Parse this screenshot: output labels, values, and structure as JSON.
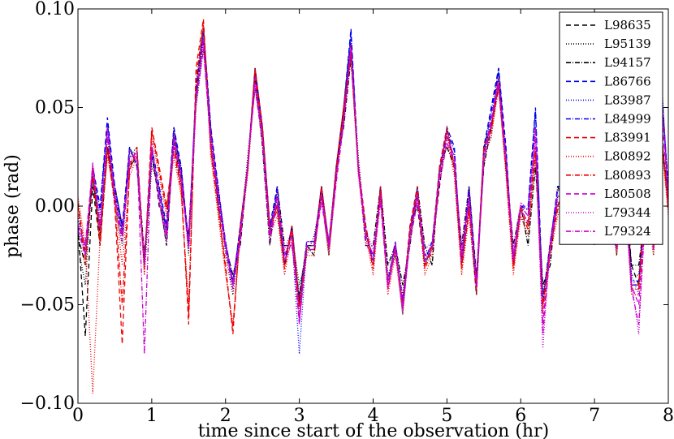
{
  "chart_data": {
    "type": "line",
    "title": "",
    "xlabel": "time since start of the observation (hr)",
    "ylabel": "phase (rad)",
    "xlim": [
      0,
      8
    ],
    "ylim": [
      -0.1,
      0.1
    ],
    "xticks": [
      0,
      1,
      2,
      3,
      4,
      5,
      6,
      7,
      8
    ],
    "yticks": [
      -0.1,
      -0.05,
      0.0,
      0.05,
      0.1
    ],
    "xtick_labels": [
      "0",
      "1",
      "2",
      "3",
      "4",
      "5",
      "6",
      "7",
      "8"
    ],
    "ytick_labels": [
      "−0.10",
      "−0.05",
      "0.00",
      "0.05",
      "0.10"
    ],
    "grid": false,
    "legend_position": "top-right",
    "x": [
      0.0,
      0.1,
      0.2,
      0.3,
      0.4,
      0.5,
      0.6,
      0.7,
      0.8,
      0.9,
      1.0,
      1.1,
      1.2,
      1.3,
      1.4,
      1.5,
      1.6,
      1.7,
      1.8,
      1.9,
      2.0,
      2.1,
      2.2,
      2.3,
      2.4,
      2.5,
      2.6,
      2.7,
      2.8,
      2.9,
      3.0,
      3.1,
      3.2,
      3.3,
      3.4,
      3.5,
      3.6,
      3.7,
      3.8,
      3.9,
      4.0,
      4.1,
      4.2,
      4.3,
      4.4,
      4.5,
      4.6,
      4.7,
      4.8,
      4.9,
      5.0,
      5.1,
      5.2,
      5.3,
      5.4,
      5.5,
      5.6,
      5.7,
      5.8,
      5.9,
      6.0,
      6.1,
      6.2,
      6.3,
      6.4,
      6.5,
      6.6,
      6.7,
      6.8,
      6.9,
      7.0,
      7.1,
      7.2,
      7.3,
      7.4,
      7.5,
      7.6,
      7.7,
      7.8,
      7.9,
      8.0
    ],
    "series": [
      {
        "name": "L98635",
        "color": "#000000",
        "dash": "6,4",
        "values": [
          -0.01,
          -0.066,
          0.01,
          -0.02,
          0.03,
          0.005,
          -0.015,
          0.03,
          0.02,
          -0.03,
          0.03,
          0.0,
          -0.01,
          0.04,
          0.015,
          -0.02,
          0.06,
          0.09,
          0.04,
          0.0,
          -0.02,
          -0.04,
          -0.01,
          0.02,
          0.07,
          0.04,
          -0.01,
          0.0,
          -0.03,
          -0.01,
          -0.05,
          -0.02,
          -0.02,
          0.01,
          -0.02,
          0.02,
          0.05,
          0.085,
          0.02,
          -0.01,
          -0.03,
          0.01,
          -0.04,
          -0.02,
          -0.05,
          -0.01,
          0.0,
          -0.03,
          -0.02,
          0.01,
          0.04,
          0.02,
          -0.03,
          0.0,
          -0.045,
          0.03,
          0.04,
          0.07,
          0.02,
          -0.03,
          0.0,
          -0.01,
          0.03,
          -0.05,
          -0.02,
          0.0,
          0.01,
          0.02,
          0.03,
          0.0,
          -0.01,
          0.02,
          0.01,
          -0.02,
          0.02,
          -0.03,
          -0.04,
          0.01,
          -0.02,
          0.04,
          0.0
        ]
      },
      {
        "name": "L95139",
        "color": "#000000",
        "dash": "1,2",
        "values": [
          -0.02,
          -0.04,
          0.02,
          -0.01,
          0.035,
          0.0,
          -0.02,
          0.025,
          0.03,
          -0.035,
          0.02,
          0.01,
          -0.015,
          0.03,
          0.02,
          -0.025,
          0.05,
          0.08,
          0.035,
          0.01,
          -0.025,
          -0.045,
          -0.015,
          0.025,
          0.06,
          0.035,
          -0.015,
          0.005,
          -0.025,
          -0.015,
          -0.04,
          -0.025,
          -0.015,
          0.005,
          -0.025,
          0.015,
          0.045,
          0.08,
          0.025,
          -0.015,
          -0.025,
          0.005,
          -0.035,
          -0.025,
          -0.045,
          -0.015,
          0.005,
          -0.025,
          -0.025,
          0.015,
          0.035,
          0.025,
          -0.025,
          0.005,
          -0.04,
          0.025,
          0.035,
          0.065,
          0.025,
          -0.025,
          -0.005,
          -0.015,
          0.025,
          -0.045,
          -0.025,
          0.005,
          0.005,
          0.025,
          0.025,
          0.005,
          -0.015,
          0.025,
          0.005,
          -0.025,
          0.015,
          -0.035,
          -0.035,
          0.005,
          -0.025,
          0.035,
          0.005
        ]
      },
      {
        "name": "L94157",
        "color": "#000000",
        "dash": "6,2,1,2",
        "values": [
          -0.015,
          -0.03,
          0.015,
          -0.015,
          0.03,
          0.01,
          -0.01,
          0.02,
          0.025,
          -0.025,
          0.025,
          0.005,
          -0.02,
          0.035,
          0.01,
          -0.015,
          0.055,
          0.085,
          0.03,
          0.005,
          -0.02,
          -0.035,
          -0.02,
          0.02,
          0.065,
          0.03,
          -0.02,
          0.01,
          -0.02,
          -0.02,
          -0.045,
          -0.02,
          -0.025,
          0.01,
          -0.02,
          0.02,
          0.04,
          0.075,
          0.02,
          -0.02,
          -0.02,
          0.01,
          -0.03,
          -0.02,
          -0.04,
          -0.02,
          0.01,
          -0.02,
          -0.03,
          0.02,
          0.03,
          0.02,
          -0.02,
          0.01,
          -0.035,
          0.02,
          0.04,
          0.06,
          0.02,
          -0.02,
          0.0,
          -0.02,
          0.02,
          -0.04,
          -0.03,
          0.01,
          0.0,
          0.02,
          0.02,
          0.01,
          -0.02,
          0.02,
          0.0,
          -0.02,
          0.01,
          -0.03,
          -0.03,
          0.0,
          -0.02,
          0.03,
          0.01
        ]
      },
      {
        "name": "L86766",
        "color": "#0000ee",
        "dash": "6,4",
        "values": [
          -0.01,
          -0.02,
          0.02,
          0.0,
          0.045,
          0.01,
          -0.01,
          0.03,
          0.02,
          -0.03,
          0.03,
          0.01,
          -0.01,
          0.04,
          0.02,
          -0.02,
          0.06,
          0.09,
          0.04,
          0.01,
          -0.02,
          -0.04,
          -0.01,
          0.02,
          0.07,
          0.04,
          -0.01,
          0.01,
          -0.03,
          -0.01,
          -0.05,
          -0.02,
          -0.02,
          0.01,
          -0.02,
          0.02,
          0.05,
          0.09,
          0.02,
          -0.01,
          -0.03,
          0.01,
          -0.04,
          -0.02,
          -0.05,
          -0.01,
          0.01,
          -0.03,
          -0.02,
          0.02,
          0.04,
          0.03,
          -0.03,
          0.01,
          -0.04,
          0.03,
          0.05,
          0.07,
          0.03,
          -0.03,
          0.0,
          0.0,
          0.05,
          -0.05,
          -0.02,
          0.01,
          0.01,
          0.02,
          0.03,
          0.01,
          -0.01,
          0.02,
          0.01,
          -0.02,
          0.02,
          -0.04,
          -0.04,
          0.01,
          -0.02,
          0.06,
          0.01
        ]
      },
      {
        "name": "L83987",
        "color": "#0000ee",
        "dash": "1,2",
        "values": [
          -0.005,
          -0.025,
          0.015,
          -0.005,
          0.04,
          0.005,
          -0.015,
          0.025,
          0.025,
          -0.03,
          0.025,
          0.005,
          -0.015,
          0.035,
          0.015,
          -0.02,
          0.055,
          0.085,
          0.035,
          0.005,
          -0.02,
          -0.04,
          -0.015,
          0.02,
          0.065,
          0.035,
          -0.015,
          0.005,
          -0.025,
          -0.015,
          -0.075,
          -0.02,
          -0.02,
          0.005,
          -0.02,
          0.015,
          0.045,
          0.085,
          0.02,
          -0.015,
          -0.025,
          0.005,
          -0.04,
          -0.02,
          -0.055,
          -0.015,
          0.005,
          -0.025,
          -0.02,
          0.015,
          0.035,
          0.025,
          -0.025,
          0.005,
          -0.04,
          0.025,
          0.045,
          0.065,
          0.025,
          -0.025,
          0.0,
          -0.005,
          0.04,
          -0.045,
          -0.02,
          0.005,
          0.005,
          0.02,
          0.025,
          0.005,
          -0.015,
          0.02,
          0.005,
          -0.02,
          0.015,
          -0.035,
          -0.045,
          0.005,
          -0.02,
          0.07,
          0.005
        ]
      },
      {
        "name": "L84999",
        "color": "#0000ee",
        "dash": "6,2,1,2",
        "values": [
          -0.012,
          -0.022,
          0.018,
          -0.002,
          0.042,
          0.008,
          -0.012,
          0.028,
          0.022,
          -0.028,
          0.028,
          0.008,
          -0.012,
          0.038,
          0.018,
          -0.018,
          0.058,
          0.088,
          0.038,
          0.008,
          -0.018,
          -0.038,
          -0.012,
          0.018,
          0.068,
          0.038,
          -0.012,
          0.008,
          -0.028,
          -0.012,
          -0.048,
          -0.018,
          -0.018,
          0.008,
          -0.018,
          0.018,
          0.048,
          0.088,
          0.018,
          -0.012,
          -0.028,
          0.008,
          -0.038,
          -0.018,
          -0.048,
          -0.012,
          0.008,
          -0.028,
          -0.018,
          0.018,
          0.038,
          0.028,
          -0.028,
          0.008,
          -0.038,
          0.028,
          0.048,
          0.068,
          0.028,
          -0.028,
          0.0,
          -0.002,
          0.048,
          -0.048,
          -0.018,
          0.008,
          0.008,
          0.018,
          0.028,
          0.008,
          -0.012,
          0.018,
          0.008,
          -0.018,
          0.018,
          -0.038,
          -0.038,
          0.008,
          -0.018,
          0.065,
          0.008
        ]
      },
      {
        "name": "L83991",
        "color": "#ee0000",
        "dash": "6,4",
        "values": [
          0.0,
          -0.03,
          0.02,
          -0.02,
          0.03,
          0.0,
          -0.07,
          0.02,
          0.03,
          -0.03,
          0.04,
          0.02,
          0.0,
          0.03,
          0.01,
          -0.06,
          0.07,
          0.095,
          0.03,
          0.0,
          -0.03,
          -0.065,
          -0.01,
          0.02,
          0.07,
          0.04,
          -0.01,
          0.0,
          -0.03,
          -0.01,
          -0.05,
          -0.02,
          -0.02,
          0.01,
          -0.02,
          0.02,
          0.05,
          0.08,
          0.02,
          -0.01,
          -0.03,
          0.01,
          -0.04,
          -0.02,
          -0.05,
          -0.01,
          0.01,
          -0.03,
          -0.02,
          0.02,
          0.04,
          0.02,
          -0.03,
          0.0,
          -0.04,
          0.03,
          0.04,
          0.065,
          0.02,
          -0.03,
          0.0,
          -0.01,
          0.03,
          -0.05,
          -0.02,
          0.0,
          0.01,
          0.02,
          0.03,
          0.0,
          -0.01,
          0.02,
          0.01,
          -0.02,
          0.02,
          -0.04,
          -0.04,
          0.01,
          -0.02,
          0.04,
          0.0
        ]
      },
      {
        "name": "L80892",
        "color": "#ee0000",
        "dash": "1,2",
        "values": [
          0.005,
          -0.02,
          -0.095,
          -0.015,
          0.025,
          0.005,
          -0.03,
          0.015,
          0.025,
          -0.035,
          0.035,
          0.015,
          -0.005,
          0.025,
          0.005,
          -0.05,
          0.06,
          0.09,
          0.025,
          -0.005,
          -0.035,
          -0.06,
          -0.015,
          0.015,
          0.065,
          0.035,
          -0.015,
          -0.005,
          -0.035,
          -0.015,
          -0.055,
          -0.025,
          -0.025,
          0.005,
          -0.025,
          0.015,
          0.045,
          0.075,
          0.015,
          -0.015,
          -0.035,
          0.005,
          -0.045,
          -0.025,
          -0.055,
          -0.015,
          0.005,
          -0.035,
          -0.025,
          0.015,
          0.035,
          0.015,
          -0.035,
          -0.005,
          -0.045,
          0.025,
          0.035,
          0.06,
          0.015,
          -0.035,
          -0.005,
          -0.015,
          0.025,
          -0.055,
          -0.025,
          -0.005,
          0.005,
          0.015,
          0.025,
          -0.005,
          -0.015,
          0.015,
          0.005,
          -0.025,
          0.015,
          -0.045,
          -0.045,
          0.005,
          -0.025,
          0.035,
          -0.005
        ]
      },
      {
        "name": "L80893",
        "color": "#ee0000",
        "dash": "6,2,1,2",
        "values": [
          0.002,
          -0.025,
          0.015,
          -0.018,
          0.028,
          0.002,
          -0.05,
          0.018,
          0.028,
          -0.032,
          0.038,
          0.018,
          -0.002,
          0.028,
          0.008,
          -0.055,
          0.065,
          0.092,
          0.028,
          -0.002,
          -0.032,
          -0.062,
          -0.012,
          0.018,
          0.068,
          0.038,
          -0.012,
          -0.002,
          -0.032,
          -0.012,
          -0.052,
          -0.022,
          -0.022,
          0.008,
          -0.022,
          0.018,
          0.048,
          0.078,
          0.018,
          -0.012,
          -0.032,
          0.008,
          -0.042,
          -0.022,
          -0.052,
          -0.012,
          0.008,
          -0.032,
          -0.022,
          0.018,
          0.038,
          0.018,
          -0.032,
          -0.002,
          -0.042,
          0.028,
          0.038,
          0.062,
          0.018,
          -0.032,
          -0.002,
          -0.012,
          0.028,
          -0.052,
          -0.022,
          -0.002,
          0.008,
          0.018,
          0.028,
          -0.002,
          -0.012,
          0.018,
          0.008,
          -0.022,
          0.018,
          -0.042,
          -0.042,
          0.008,
          -0.022,
          0.038,
          -0.002
        ]
      },
      {
        "name": "L80508",
        "color": "#cc00cc",
        "dash": "6,4",
        "values": [
          -0.01,
          -0.02,
          0.02,
          -0.01,
          0.035,
          0.005,
          -0.015,
          0.025,
          0.025,
          -0.03,
          0.03,
          0.005,
          -0.015,
          0.035,
          0.015,
          -0.02,
          0.055,
          0.085,
          0.035,
          0.005,
          -0.02,
          -0.04,
          -0.015,
          0.02,
          0.065,
          0.035,
          -0.015,
          0.005,
          -0.025,
          -0.015,
          -0.06,
          -0.02,
          -0.02,
          0.005,
          -0.02,
          0.015,
          0.045,
          0.08,
          0.02,
          -0.015,
          -0.025,
          0.005,
          -0.04,
          -0.02,
          -0.05,
          -0.015,
          0.005,
          -0.025,
          -0.02,
          0.015,
          0.035,
          0.025,
          -0.025,
          0.005,
          -0.04,
          0.025,
          0.045,
          0.065,
          0.025,
          -0.025,
          0.0,
          -0.005,
          0.04,
          -0.06,
          -0.02,
          0.005,
          0.005,
          0.02,
          0.025,
          0.005,
          -0.015,
          0.02,
          0.005,
          -0.02,
          0.015,
          -0.04,
          -0.05,
          0.005,
          -0.02,
          0.05,
          0.005
        ]
      },
      {
        "name": "L79344",
        "color": "#cc00cc",
        "dash": "1,2",
        "values": [
          -0.008,
          -0.018,
          0.018,
          -0.008,
          0.038,
          0.008,
          -0.012,
          0.028,
          0.022,
          -0.028,
          0.028,
          0.008,
          -0.012,
          0.038,
          0.018,
          -0.018,
          0.058,
          0.082,
          0.038,
          0.008,
          -0.018,
          -0.038,
          -0.012,
          0.018,
          0.062,
          0.038,
          -0.012,
          0.008,
          -0.022,
          -0.012,
          -0.055,
          -0.018,
          -0.018,
          0.008,
          -0.018,
          0.018,
          0.042,
          0.078,
          0.022,
          -0.012,
          -0.022,
          0.008,
          -0.038,
          -0.018,
          -0.048,
          -0.012,
          0.008,
          -0.022,
          -0.018,
          0.018,
          0.038,
          0.022,
          -0.022,
          0.008,
          -0.038,
          0.022,
          0.042,
          0.062,
          0.022,
          -0.022,
          0.002,
          -0.002,
          0.038,
          -0.072,
          -0.018,
          0.008,
          0.008,
          0.018,
          0.022,
          0.008,
          -0.012,
          0.018,
          0.008,
          -0.018,
          0.018,
          -0.038,
          -0.065,
          0.008,
          -0.018,
          0.065,
          0.008
        ]
      },
      {
        "name": "L79324",
        "color": "#cc00cc",
        "dash": "6,2,1,2",
        "values": [
          -0.012,
          -0.025,
          0.022,
          -0.012,
          0.04,
          0.002,
          -0.018,
          0.022,
          0.028,
          -0.075,
          0.032,
          0.002,
          -0.018,
          0.032,
          0.012,
          -0.022,
          0.052,
          0.08,
          0.032,
          0.002,
          -0.022,
          -0.042,
          -0.018,
          0.022,
          0.06,
          0.032,
          -0.018,
          0.002,
          -0.028,
          -0.018,
          -0.058,
          -0.022,
          -0.022,
          0.002,
          -0.022,
          0.012,
          0.042,
          0.082,
          0.018,
          -0.018,
          -0.028,
          0.002,
          -0.042,
          -0.022,
          -0.052,
          -0.018,
          0.002,
          -0.028,
          -0.022,
          0.012,
          0.032,
          0.022,
          -0.028,
          0.002,
          -0.042,
          0.022,
          0.042,
          0.062,
          0.022,
          -0.028,
          -0.002,
          -0.008,
          0.035,
          -0.065,
          -0.022,
          0.002,
          0.002,
          0.022,
          0.028,
          0.002,
          -0.018,
          0.022,
          0.002,
          -0.022,
          0.012,
          -0.042,
          -0.06,
          0.002,
          -0.022,
          0.06,
          0.002
        ]
      }
    ]
  }
}
